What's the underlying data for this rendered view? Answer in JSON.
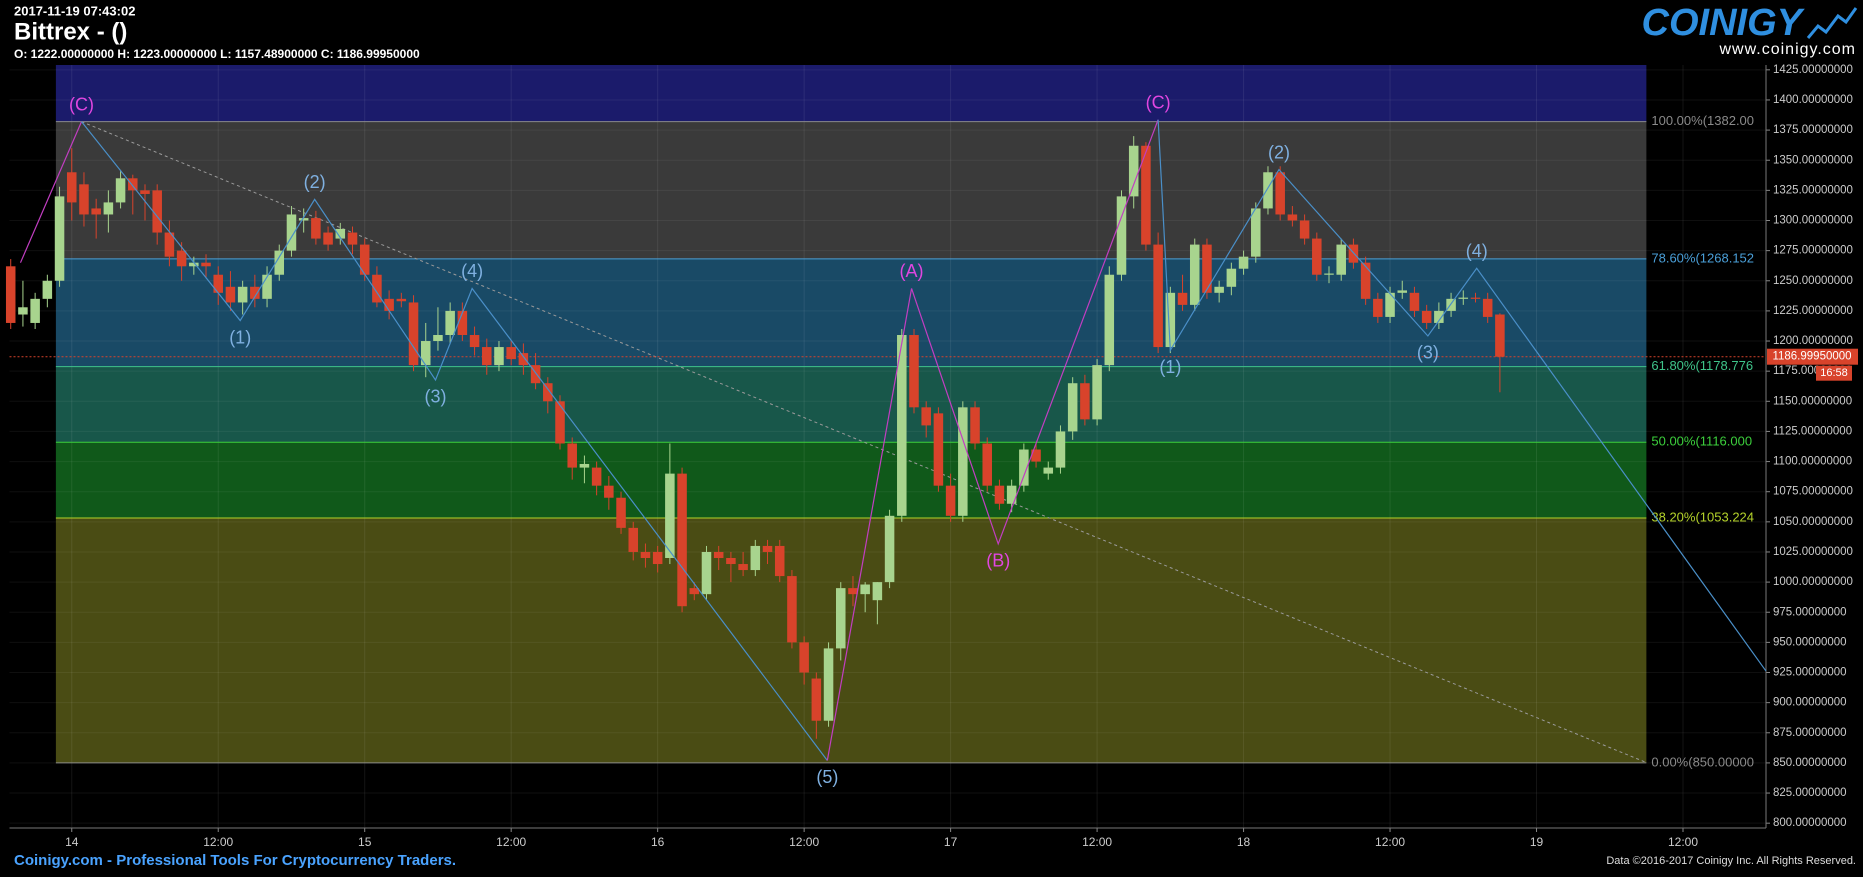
{
  "header": {
    "timestamp": "2017-11-19 07:43:02",
    "title": "Bittrex -  ()",
    "ohlc_line": "O: 1222.00000000 H: 1223.00000000 L: 1157.48900000 C: 1186.99950000"
  },
  "logo": {
    "name": "COINIGY",
    "url": "www.coinigy.com"
  },
  "footer": {
    "left": "Coinigy.com - Professional Tools For Cryptocurrency Traders.",
    "right": "Data ©2016-2017 Coinigy Inc. All Rights Reserved."
  },
  "chart_data": {
    "type": "candlestick",
    "grid": true,
    "up_color": "#a8d48e",
    "down_color": "#d8432b",
    "xlim": [
      -5.1,
      138.8
    ],
    "ylim": [
      796,
      1429
    ],
    "xticks": [
      {
        "value": 0,
        "label": "14"
      },
      {
        "value": 12,
        "label": "12:00"
      },
      {
        "value": 24,
        "label": "15"
      },
      {
        "value": 36,
        "label": "12:00"
      },
      {
        "value": 48,
        "label": "16"
      },
      {
        "value": 60,
        "label": "12:00"
      },
      {
        "value": 72,
        "label": "17"
      },
      {
        "value": 84,
        "label": "12:00"
      },
      {
        "value": 96,
        "label": "18"
      },
      {
        "value": 108,
        "label": "12:00"
      },
      {
        "value": 120,
        "label": "19"
      },
      {
        "value": 132,
        "label": "12:00"
      }
    ],
    "yticks": [
      {
        "value": 800,
        "label": "800.00000000"
      },
      {
        "value": 825,
        "label": "825.00000000"
      },
      {
        "value": 850,
        "label": "850.00000000"
      },
      {
        "value": 875,
        "label": "875.00000000"
      },
      {
        "value": 900,
        "label": "900.00000000"
      },
      {
        "value": 925,
        "label": "925.00000000"
      },
      {
        "value": 950,
        "label": "950.00000000"
      },
      {
        "value": 975,
        "label": "975.00000000"
      },
      {
        "value": 1000,
        "label": "1000.00000000"
      },
      {
        "value": 1025,
        "label": "1025.00000000"
      },
      {
        "value": 1050,
        "label": "1050.00000000"
      },
      {
        "value": 1075,
        "label": "1075.00000000"
      },
      {
        "value": 1100,
        "label": "1100.00000000"
      },
      {
        "value": 1125,
        "label": "1125.00000000"
      },
      {
        "value": 1150,
        "label": "1150.00000000"
      },
      {
        "value": 1175,
        "label": "1175.00000000"
      },
      {
        "value": 1200,
        "label": "1200.00000000"
      },
      {
        "value": 1225,
        "label": "1225.00000000"
      },
      {
        "value": 1250,
        "label": "1250.00000000"
      },
      {
        "value": 1275,
        "label": "1275.00000000"
      },
      {
        "value": 1300,
        "label": "1300.00000000"
      },
      {
        "value": 1325,
        "label": "1325.00000000"
      },
      {
        "value": 1350,
        "label": "1350.00000000"
      },
      {
        "value": 1375,
        "label": "1375.00000000"
      },
      {
        "value": 1400,
        "label": "1400.00000000"
      },
      {
        "value": 1425,
        "label": "1425.00000000"
      }
    ],
    "x": [
      -5,
      -4,
      -3,
      -2,
      -1,
      0,
      1,
      2,
      3,
      4,
      5,
      6,
      7,
      8,
      9,
      10,
      11,
      12,
      13,
      14,
      15,
      16,
      17,
      18,
      19,
      20,
      21,
      22,
      23,
      24,
      25,
      26,
      27,
      28,
      29,
      30,
      31,
      32,
      33,
      34,
      35,
      36,
      37,
      38,
      39,
      40,
      41,
      42,
      43,
      44,
      45,
      46,
      47,
      48,
      49,
      50,
      51,
      52,
      53,
      54,
      55,
      56,
      57,
      58,
      59,
      60,
      61,
      62,
      63,
      64,
      65,
      66,
      67,
      68,
      69,
      70,
      71,
      72,
      73,
      74,
      75,
      76,
      77,
      78,
      79,
      80,
      81,
      82,
      83,
      84,
      85,
      86,
      87,
      88,
      89,
      90,
      91,
      92,
      93,
      94,
      95,
      96,
      97,
      98,
      99,
      100,
      101,
      102,
      103,
      104,
      105,
      106,
      107,
      108,
      109,
      110,
      111,
      112,
      113,
      114,
      115,
      116,
      117
    ],
    "ohlc": [
      [
        1262,
        1268,
        1210,
        1215
      ],
      [
        1222,
        1250,
        1212,
        1228
      ],
      [
        1215,
        1240,
        1210,
        1235
      ],
      [
        1235,
        1255,
        1228,
        1250
      ],
      [
        1250,
        1328,
        1245,
        1320
      ],
      [
        1340,
        1360,
        1300,
        1315
      ],
      [
        1330,
        1340,
        1295,
        1305
      ],
      [
        1310,
        1318,
        1285,
        1305
      ],
      [
        1305,
        1325,
        1290,
        1315
      ],
      [
        1315,
        1342,
        1310,
        1335
      ],
      [
        1335,
        1338,
        1305,
        1325
      ],
      [
        1325,
        1330,
        1300,
        1322
      ],
      [
        1325,
        1330,
        1280,
        1290
      ],
      [
        1290,
        1300,
        1262,
        1270
      ],
      [
        1275,
        1282,
        1250,
        1262
      ],
      [
        1262,
        1270,
        1255,
        1265
      ],
      [
        1265,
        1272,
        1252,
        1262
      ],
      [
        1255,
        1262,
        1230,
        1240
      ],
      [
        1245,
        1258,
        1225,
        1232
      ],
      [
        1232,
        1250,
        1222,
        1245
      ],
      [
        1245,
        1255,
        1228,
        1235
      ],
      [
        1235,
        1262,
        1228,
        1255
      ],
      [
        1255,
        1280,
        1250,
        1275
      ],
      [
        1275,
        1312,
        1270,
        1305
      ],
      [
        1300,
        1310,
        1290,
        1302
      ],
      [
        1302,
        1308,
        1280,
        1285
      ],
      [
        1290,
        1295,
        1275,
        1280
      ],
      [
        1285,
        1298,
        1280,
        1293
      ],
      [
        1290,
        1295,
        1272,
        1280
      ],
      [
        1280,
        1285,
        1250,
        1255
      ],
      [
        1255,
        1262,
        1228,
        1232
      ],
      [
        1235,
        1242,
        1218,
        1225
      ],
      [
        1235,
        1240,
        1228,
        1233
      ],
      [
        1232,
        1238,
        1175,
        1180
      ],
      [
        1180,
        1215,
        1170,
        1200
      ],
      [
        1200,
        1228,
        1192,
        1205
      ],
      [
        1205,
        1232,
        1198,
        1225
      ],
      [
        1225,
        1232,
        1200,
        1205
      ],
      [
        1205,
        1212,
        1188,
        1195
      ],
      [
        1195,
        1202,
        1172,
        1180
      ],
      [
        1180,
        1200,
        1175,
        1195
      ],
      [
        1195,
        1200,
        1180,
        1185
      ],
      [
        1190,
        1198,
        1172,
        1180
      ],
      [
        1180,
        1190,
        1160,
        1165
      ],
      [
        1165,
        1170,
        1140,
        1150
      ],
      [
        1150,
        1155,
        1110,
        1115
      ],
      [
        1115,
        1120,
        1085,
        1095
      ],
      [
        1095,
        1105,
        1082,
        1098
      ],
      [
        1095,
        1100,
        1072,
        1080
      ],
      [
        1080,
        1088,
        1060,
        1070
      ],
      [
        1070,
        1075,
        1040,
        1045
      ],
      [
        1045,
        1050,
        1018,
        1025
      ],
      [
        1025,
        1032,
        1012,
        1020
      ],
      [
        1025,
        1030,
        1008,
        1015
      ],
      [
        1020,
        1115,
        1015,
        1090
      ],
      [
        1090,
        1095,
        975,
        980
      ],
      [
        995,
        1000,
        985,
        990
      ],
      [
        990,
        1030,
        985,
        1025
      ],
      [
        1025,
        1030,
        1010,
        1020
      ],
      [
        1020,
        1025,
        1000,
        1015
      ],
      [
        1015,
        1025,
        1005,
        1010
      ],
      [
        1010,
        1035,
        1005,
        1030
      ],
      [
        1030,
        1035,
        1015,
        1025
      ],
      [
        1030,
        1035,
        1000,
        1005
      ],
      [
        1005,
        1010,
        945,
        950
      ],
      [
        950,
        955,
        915,
        925
      ],
      [
        920,
        925,
        870,
        885
      ],
      [
        885,
        950,
        880,
        945
      ],
      [
        945,
        1000,
        935,
        995
      ],
      [
        995,
        1005,
        980,
        990
      ],
      [
        990,
        1000,
        975,
        998
      ],
      [
        985,
        1000,
        965,
        1000
      ],
      [
        1000,
        1060,
        995,
        1055
      ],
      [
        1055,
        1210,
        1050,
        1205
      ],
      [
        1205,
        1210,
        1140,
        1145
      ],
      [
        1145,
        1150,
        1120,
        1130
      ],
      [
        1140,
        1145,
        1075,
        1080
      ],
      [
        1080,
        1090,
        1050,
        1055
      ],
      [
        1055,
        1150,
        1050,
        1145
      ],
      [
        1145,
        1150,
        1110,
        1115
      ],
      [
        1115,
        1120,
        1075,
        1080
      ],
      [
        1080,
        1085,
        1060,
        1065
      ],
      [
        1065,
        1085,
        1058,
        1080
      ],
      [
        1080,
        1115,
        1075,
        1110
      ],
      [
        1110,
        1115,
        1095,
        1100
      ],
      [
        1090,
        1100,
        1085,
        1095
      ],
      [
        1095,
        1130,
        1090,
        1125
      ],
      [
        1125,
        1170,
        1118,
        1165
      ],
      [
        1165,
        1172,
        1130,
        1135
      ],
      [
        1135,
        1185,
        1130,
        1180
      ],
      [
        1180,
        1262,
        1175,
        1255
      ],
      [
        1255,
        1325,
        1250,
        1320
      ],
      [
        1320,
        1370,
        1310,
        1362
      ],
      [
        1362,
        1365,
        1275,
        1280
      ],
      [
        1280,
        1290,
        1190,
        1195
      ],
      [
        1195,
        1245,
        1190,
        1240
      ],
      [
        1240,
        1255,
        1225,
        1230
      ],
      [
        1230,
        1285,
        1225,
        1280
      ],
      [
        1280,
        1285,
        1235,
        1240
      ],
      [
        1240,
        1250,
        1232,
        1245
      ],
      [
        1245,
        1265,
        1238,
        1260
      ],
      [
        1260,
        1275,
        1255,
        1270
      ],
      [
        1270,
        1315,
        1265,
        1310
      ],
      [
        1310,
        1345,
        1305,
        1340
      ],
      [
        1340,
        1345,
        1300,
        1305
      ],
      [
        1305,
        1312,
        1295,
        1300
      ],
      [
        1300,
        1305,
        1280,
        1285
      ],
      [
        1285,
        1290,
        1250,
        1255
      ],
      [
        1255,
        1262,
        1248,
        1256
      ],
      [
        1255,
        1285,
        1250,
        1280
      ],
      [
        1280,
        1285,
        1260,
        1265
      ],
      [
        1265,
        1270,
        1230,
        1235
      ],
      [
        1235,
        1240,
        1215,
        1220
      ],
      [
        1220,
        1245,
        1215,
        1240
      ],
      [
        1240,
        1250,
        1235,
        1242
      ],
      [
        1240,
        1245,
        1220,
        1225
      ],
      [
        1225,
        1230,
        1210,
        1215
      ],
      [
        1215,
        1232,
        1210,
        1225
      ],
      [
        1225,
        1240,
        1220,
        1235
      ],
      [
        1235,
        1242,
        1230,
        1236
      ],
      [
        1236,
        1240,
        1232,
        1235
      ],
      [
        1235,
        1240,
        1215,
        1220
      ],
      [
        1222,
        1223,
        1157.489,
        1186.9995
      ]
    ],
    "fib": {
      "x_range": [
        -1.3,
        129
      ],
      "levels": [
        {
          "value": 1382,
          "label": "100.00%(1382.00",
          "color": "#8a8a8a",
          "fill": "#1b1b6b"
        },
        {
          "value": 1268.152,
          "label": "78.60%(1268.152",
          "color": "#4a9fd8",
          "fill": "#3a3a3a"
        },
        {
          "value": 1178.776,
          "label": "61.80%(1178.776",
          "color": "#3fc48a",
          "fill": "#194a66"
        },
        {
          "value": 1116,
          "label": "50.00%(1116.000",
          "color": "#3ccf3c",
          "fill": "#18574a"
        },
        {
          "value": 1053.224,
          "label": "38.20%(1053.224",
          "color": "#b4d22a",
          "fill": "#10591a"
        },
        {
          "value": 850,
          "label": "0.00%(850.00000",
          "color": "#8a8a8a",
          "fill": "#4a4c14"
        }
      ]
    },
    "trendline": {
      "color": "#9a9a9a",
      "points": [
        [
          0.8,
          1382
        ],
        [
          129,
          850.3
        ]
      ]
    },
    "waves": [
      {
        "color": "#c23ec2",
        "label_color": "#e046e0",
        "points": [
          [
            -4.2,
            1265
          ],
          [
            0.8,
            1382
          ]
        ],
        "labels": [
          null,
          "(C)"
        ]
      },
      {
        "color": "#4a8fc8",
        "label_color": "#7fb0e0",
        "points": [
          [
            0.8,
            1382
          ],
          [
            13.8,
            1217
          ],
          [
            19.9,
            1317.5
          ],
          [
            29.8,
            1167.7
          ],
          [
            32.8,
            1243.6
          ],
          [
            61.9,
            852
          ]
        ],
        "labels": [
          null,
          "(1)",
          "(2)",
          "(3)",
          "(4)",
          "(5)"
        ]
      },
      {
        "color": "#c23ec2",
        "label_color": "#e046e0",
        "points": [
          [
            61.9,
            852
          ],
          [
            68.8,
            1243.6
          ],
          [
            75.9,
            1031.7
          ],
          [
            89,
            1383.6
          ]
        ],
        "labels": [
          null,
          "(A)",
          "(B)",
          "(C)"
        ]
      },
      {
        "color": "#4a8fc8",
        "label_color": "#7fb0e0",
        "points": [
          [
            89,
            1383.6
          ],
          [
            90,
            1192.3
          ],
          [
            98.9,
            1342.2
          ],
          [
            111.1,
            1204.2
          ],
          [
            115.1,
            1260.4
          ],
          [
            138.8,
            926.2
          ]
        ],
        "labels": [
          null,
          "(1)",
          "(2)",
          "(3)",
          "(4)",
          null
        ]
      }
    ],
    "last_price": {
      "value": 1186.9995,
      "label": "1186.99950000",
      "timer": "16:58",
      "color": "#d8432b"
    }
  }
}
